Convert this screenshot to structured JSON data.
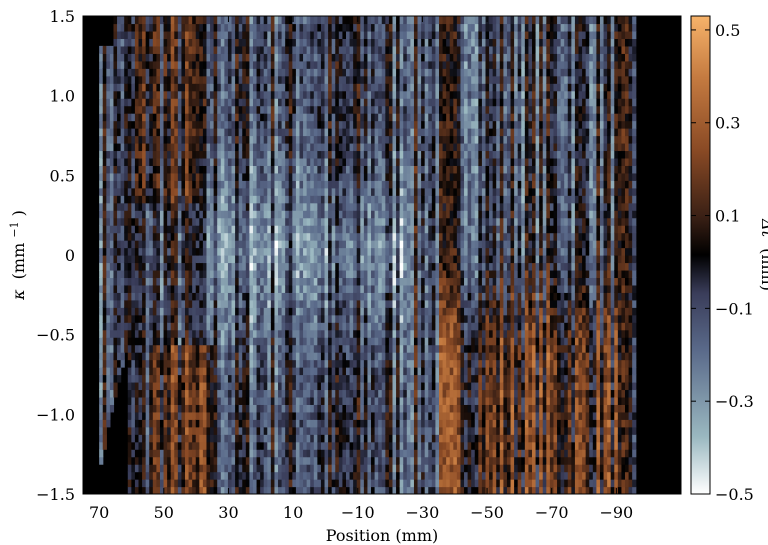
{
  "chart_data": {
    "type": "heatmap",
    "title": "",
    "xlabel": "Position (mm)",
    "ylabel_symbol": "κ",
    "ylabel_unit": "(mm",
    "ylabel_exp": "−1",
    "ylabel_close": ")",
    "colorbar_label_symbol": "Δt",
    "colorbar_label_unit": "(mm)",
    "xlim": [
      75,
      -110
    ],
    "ylim": [
      -1.5,
      1.5
    ],
    "clim": [
      -0.5,
      0.53
    ],
    "xticks": [
      70,
      50,
      30,
      10,
      -10,
      -30,
      -50,
      -70,
      -90
    ],
    "xtick_labels": [
      "70",
      "50",
      "30",
      "10",
      "−10",
      "−30",
      "−50",
      "−70",
      "−90"
    ],
    "yticks": [
      -1.5,
      -1.0,
      -0.5,
      0,
      0.5,
      1.0,
      1.5
    ],
    "ytick_labels": [
      "−1.5",
      "−1.0",
      "−0.5",
      "0",
      "0.5",
      "1.0",
      "1.5"
    ],
    "cbar_ticks": [
      0.5,
      0.3,
      0.1,
      -0.1,
      -0.3,
      -0.5
    ],
    "cbar_tick_labels": [
      "0.5",
      "0.3",
      "0.1",
      "−0.1",
      "−0.3",
      "−0.5"
    ],
    "data_xrange": [
      70,
      -96
    ],
    "colormap_stops": [
      "#ffffff",
      "#9ab8c0",
      "#5a6a8a",
      "#3a3d5a",
      "#000000",
      "#3a2015",
      "#8a4a25",
      "#c47a40",
      "#f7b36a"
    ],
    "grid": false,
    "legend": "none"
  }
}
